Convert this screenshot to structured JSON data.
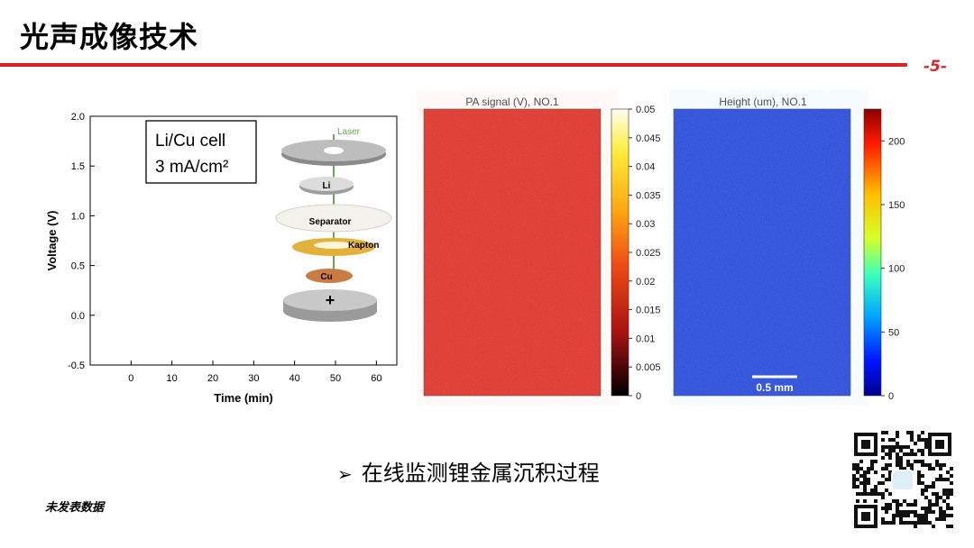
{
  "slide": {
    "title": "光声成像技术",
    "page_number": "-5-",
    "bullet_marker": "➢",
    "bullet_text": "在线监测锂金属沉积过程",
    "footnote": "未发表数据",
    "accent_color": "#d7262a"
  },
  "voltage_plot": {
    "type": "line",
    "xlabel": "Time (min)",
    "ylabel": "Voltage (V)",
    "xlim": [
      -10,
      65
    ],
    "ylim": [
      -0.5,
      2.0
    ],
    "xticks": [
      "0",
      "10",
      "20",
      "30",
      "40",
      "50",
      "60"
    ],
    "yticks": [
      "-0.5",
      "0.0",
      "0.5",
      "1.0",
      "1.5",
      "2.0"
    ],
    "callout_lines": [
      "Li/Cu cell",
      "3 mA/cm²"
    ],
    "cell_labels": {
      "laser": "Laser",
      "li": "Li",
      "separator": "Separator",
      "kapton": "Kapton",
      "cu": "Cu",
      "plus": "+"
    }
  },
  "pa_map": {
    "type": "heatmap",
    "title": "PA signal (V), NO.1",
    "colorbar_ticks": [
      "0.05",
      "0.045",
      "0.04",
      "0.035",
      "0.03",
      "0.025",
      "0.02",
      "0.015",
      "0.01",
      "0.005",
      "0"
    ],
    "color": "#d92a22"
  },
  "height_map": {
    "type": "heatmap",
    "title": "Height (um), NO.1",
    "colorbar_ticks": [
      "200",
      "150",
      "100",
      "50",
      "0"
    ],
    "scale_bar": "0.5 mm",
    "color": "#1f3fd6"
  }
}
